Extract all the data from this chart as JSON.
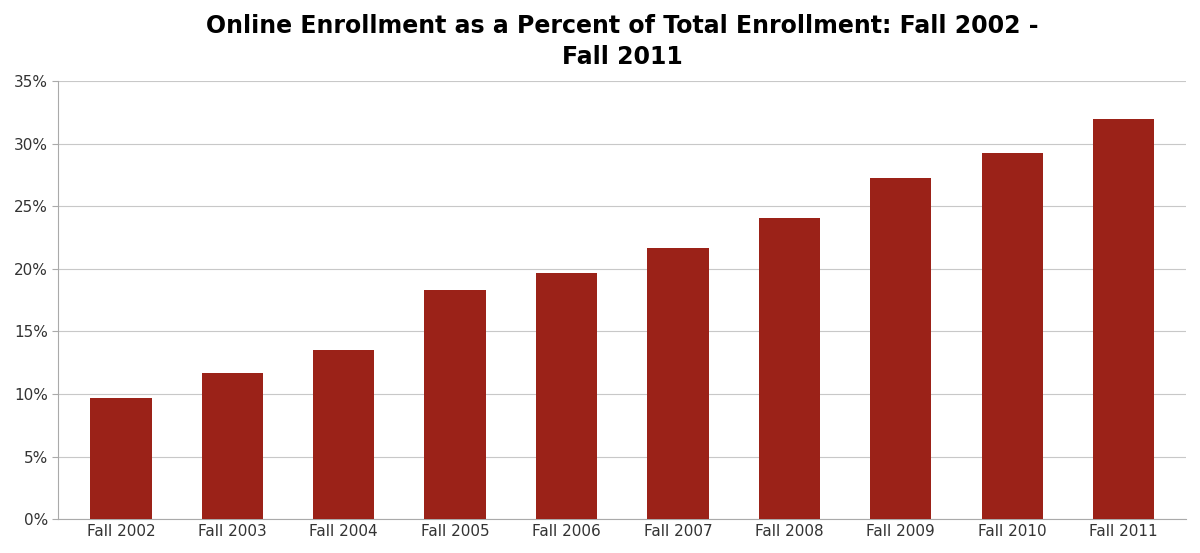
{
  "title": "Online Enrollment as a Percent of Total Enrollment: Fall 2002 -\nFall 2011",
  "categories": [
    "Fall 2002",
    "Fall 2003",
    "Fall 2004",
    "Fall 2005",
    "Fall 2006",
    "Fall 2007",
    "Fall 2008",
    "Fall 2009",
    "Fall 2010",
    "Fall 2011"
  ],
  "values": [
    9.7,
    11.7,
    13.5,
    18.3,
    19.7,
    21.7,
    24.1,
    27.3,
    29.3,
    32.0
  ],
  "bar_color": "#9B2218",
  "background_color": "#ffffff",
  "ylim": [
    0,
    35
  ],
  "yticks": [
    0,
    5,
    10,
    15,
    20,
    25,
    30,
    35
  ],
  "ytick_labels": [
    "0%",
    "5%",
    "10%",
    "15%",
    "20%",
    "25%",
    "30%",
    "35%"
  ],
  "title_fontsize": 17,
  "tick_fontsize": 11,
  "grid_color": "#c8c8c8",
  "bar_width": 0.55,
  "figsize": [
    12.0,
    5.53
  ],
  "dpi": 100
}
